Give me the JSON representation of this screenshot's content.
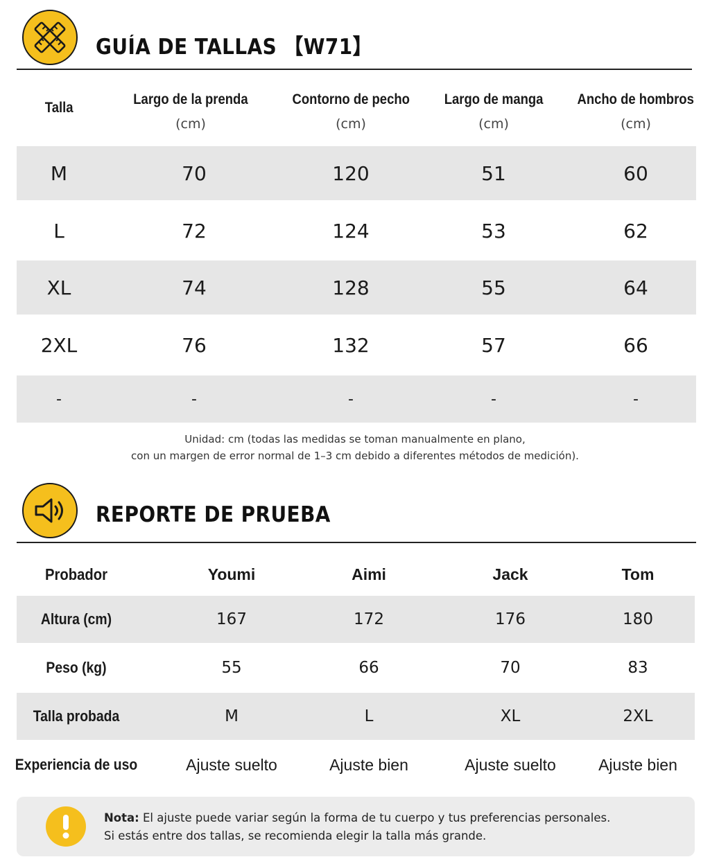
{
  "size_guide": {
    "title": "GUÍA DE TALLAS",
    "model_code": "【W71】",
    "icon": "ruler-cross-icon",
    "headers": [
      {
        "label": "Talla",
        "unit": ""
      },
      {
        "label": "Largo de la prenda",
        "unit": "(cm)"
      },
      {
        "label": "Contorno de pecho",
        "unit": "(cm)"
      },
      {
        "label": "Largo de manga",
        "unit": "(cm)"
      },
      {
        "label": "Ancho de hombros",
        "unit": "(cm)"
      }
    ],
    "rows": [
      [
        "M",
        "70",
        "120",
        "51",
        "60"
      ],
      [
        "L",
        "72",
        "124",
        "53",
        "62"
      ],
      [
        "XL",
        "74",
        "128",
        "55",
        "64"
      ],
      [
        "2XL",
        "76",
        "132",
        "57",
        "66"
      ],
      [
        "-",
        "-",
        "-",
        "-",
        "-"
      ]
    ],
    "note_line1": "Unidad: cm (todas las medidas se toman manualmente en plano,",
    "note_line2": "con un margen de error normal de 1–3 cm debido a diferentes métodos de medición)."
  },
  "test_report": {
    "title": "REPORTE DE PRUEBA",
    "icon": "speaker-icon",
    "header_label": "Probador",
    "testers": [
      "Youmi",
      "Aimi",
      "Jack",
      "Tom"
    ],
    "rows": [
      {
        "label": "Altura (cm)",
        "values": [
          "167",
          "172",
          "176",
          "180"
        ]
      },
      {
        "label": "Peso (kg)",
        "values": [
          "55",
          "66",
          "70",
          "83"
        ]
      },
      {
        "label": "Talla probada",
        "values": [
          "M",
          "L",
          "XL",
          "2XL"
        ]
      },
      {
        "label": "Experiencia de uso",
        "values": [
          "Ajuste suelto",
          "Ajuste bien",
          "Ajuste suelto",
          "Ajuste bien"
        ]
      }
    ]
  },
  "note": {
    "icon": "exclamation-icon",
    "bold": "Nota:",
    "line1": " El ajuste puede variar según la forma de tu cuerpo y tus preferencias personales.",
    "line2": "Si estás entre dos tallas, se recomienda elegir la talla más grande."
  },
  "colors": {
    "accent": "#f5bf1d",
    "row_shade": "#e6e6e6",
    "note_bg": "#ececec"
  }
}
